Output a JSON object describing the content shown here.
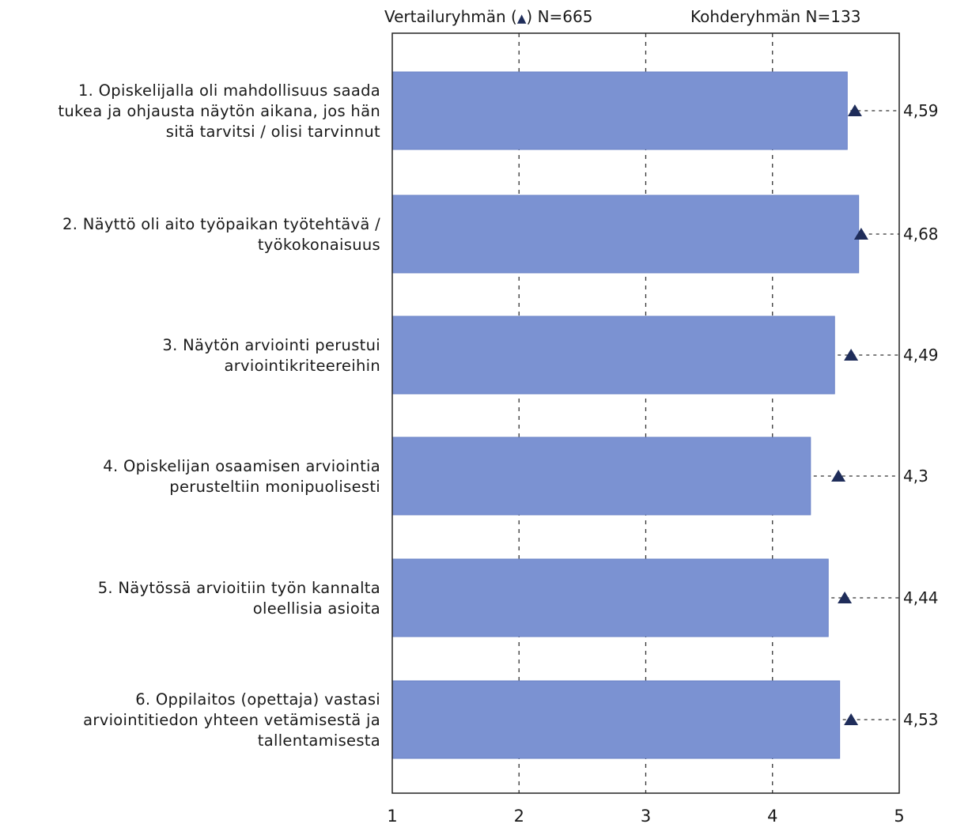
{
  "legend": {
    "comparison_label": "Vertailuryhmän (",
    "comparison_symbol": "▲",
    "comparison_n": ") N=665",
    "target_label": "Kohderyhmän N=133"
  },
  "colors": {
    "bar": "#7b92d2",
    "bar_edge": "#6a82c6",
    "marker": "#1f2d5a",
    "grid": "#333333",
    "frame": "#222222"
  },
  "chart_data": {
    "type": "bar",
    "orientation": "horizontal",
    "categories": [
      "1. Opiskelijalla oli mahdollisuus saada tukea ja ohjausta näytön aikana, jos hän sitä tarvitsi / olisi tarvinnut",
      "2. Näyttö oli aito työpaikan työtehtävä / työkokonaisuus",
      "3. Näytön arviointi perustui arviointikriteereihin",
      "4. Opiskelijan osaamisen arviointia perusteltiin monipuolisesti",
      "5. Näytössä arvioitiin työn kannalta oleellisia asioita",
      "6. Oppilaitos (opettaja) vastasi arviointitiedon yhteen vetämisestä ja tallentamisesta"
    ],
    "category_lines": [
      [
        "1. Opiskelijalla oli mahdollisuus saada",
        "tukea ja ohjausta näytön aikana, jos hän",
        "sitä tarvitsi / olisi tarvinnut"
      ],
      [
        "2. Näyttö oli aito työpaikan työtehtävä /",
        "työkokonaisuus"
      ],
      [
        "3. Näytön arviointi perustui",
        "arviointikriteereihin"
      ],
      [
        "4. Opiskelijan osaamisen arviointia",
        "perusteltiin monipuolisesti"
      ],
      [
        "5. Näytössä arvioitiin työn kannalta",
        "oleellisia asioita"
      ],
      [
        "6. Oppilaitos (opettaja) vastasi",
        "arviointitiedon yhteen vetämisestä ja",
        "tallentamisesta"
      ]
    ],
    "series": [
      {
        "name": "Kohderyhmän N=133",
        "kind": "bar",
        "values": [
          4.59,
          4.68,
          4.49,
          4.3,
          4.44,
          4.53
        ]
      },
      {
        "name": "Vertailuryhmän N=665",
        "kind": "marker",
        "values": [
          4.65,
          4.7,
          4.62,
          4.52,
          4.57,
          4.62
        ]
      }
    ],
    "value_labels": [
      "4,59",
      "4,68",
      "4,49",
      "4,3",
      "4,44",
      "4,53"
    ],
    "xlim": [
      1,
      5
    ],
    "xticks": [
      1,
      2,
      3,
      4,
      5
    ],
    "xtick_labels": [
      "1",
      "2",
      "3",
      "4",
      "5"
    ],
    "gridlines": "dashed-vertical"
  }
}
